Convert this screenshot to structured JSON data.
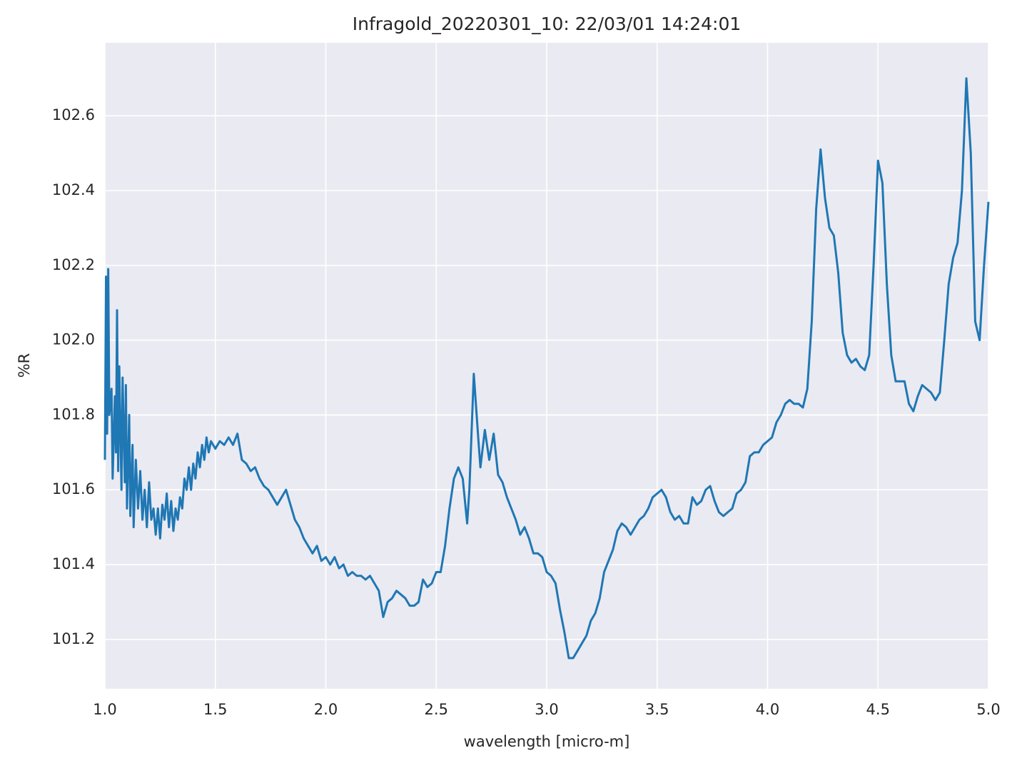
{
  "chart_data": {
    "type": "line",
    "title": "Infragold_20220301_10:  22/03/01 14:24:01",
    "xlabel": "wavelength [micro-m]",
    "ylabel": "%R",
    "xlim": [
      1.0,
      5.0
    ],
    "ylim": [
      101.068,
      102.795
    ],
    "xticks": [
      {
        "value": 1.0,
        "label": "1.0"
      },
      {
        "value": 1.5,
        "label": "1.5"
      },
      {
        "value": 2.0,
        "label": "2.0"
      },
      {
        "value": 2.5,
        "label": "2.5"
      },
      {
        "value": 3.0,
        "label": "3.0"
      },
      {
        "value": 3.5,
        "label": "3.5"
      },
      {
        "value": 4.0,
        "label": "4.0"
      },
      {
        "value": 4.5,
        "label": "4.5"
      },
      {
        "value": 5.0,
        "label": "5.0"
      }
    ],
    "yticks": [
      101.2,
      101.4,
      101.6,
      101.8,
      {
        "value": 102.0,
        "label": "102.0"
      },
      102.2,
      102.4,
      102.6
    ],
    "grid": true,
    "color": "#1f77b4",
    "background": "#eaeaf2",
    "x": [
      1.0,
      1.005,
      1.01,
      1.015,
      1.02,
      1.03,
      1.035,
      1.045,
      1.05,
      1.055,
      1.06,
      1.065,
      1.075,
      1.08,
      1.09,
      1.095,
      1.1,
      1.11,
      1.115,
      1.125,
      1.13,
      1.14,
      1.15,
      1.16,
      1.17,
      1.18,
      1.19,
      1.2,
      1.21,
      1.22,
      1.23,
      1.24,
      1.25,
      1.26,
      1.27,
      1.28,
      1.29,
      1.3,
      1.31,
      1.32,
      1.33,
      1.34,
      1.35,
      1.36,
      1.37,
      1.38,
      1.39,
      1.4,
      1.41,
      1.42,
      1.43,
      1.44,
      1.45,
      1.46,
      1.47,
      1.48,
      1.5,
      1.52,
      1.54,
      1.56,
      1.58,
      1.6,
      1.62,
      1.64,
      1.66,
      1.68,
      1.7,
      1.72,
      1.74,
      1.76,
      1.78,
      1.8,
      1.82,
      1.84,
      1.86,
      1.88,
      1.9,
      1.92,
      1.94,
      1.96,
      1.98,
      2.0,
      2.02,
      2.04,
      2.06,
      2.08,
      2.1,
      2.12,
      2.14,
      2.16,
      2.18,
      2.2,
      2.22,
      2.24,
      2.26,
      2.28,
      2.3,
      2.32,
      2.34,
      2.36,
      2.38,
      2.4,
      2.42,
      2.44,
      2.46,
      2.48,
      2.5,
      2.52,
      2.54,
      2.56,
      2.58,
      2.6,
      2.62,
      2.64,
      2.65,
      2.67,
      2.69,
      2.7,
      2.72,
      2.74,
      2.76,
      2.78,
      2.8,
      2.82,
      2.84,
      2.86,
      2.88,
      2.9,
      2.92,
      2.94,
      2.96,
      2.98,
      3.0,
      3.02,
      3.04,
      3.06,
      3.08,
      3.1,
      3.12,
      3.14,
      3.16,
      3.18,
      3.2,
      3.22,
      3.24,
      3.26,
      3.28,
      3.3,
      3.32,
      3.34,
      3.36,
      3.38,
      3.4,
      3.42,
      3.44,
      3.46,
      3.48,
      3.5,
      3.52,
      3.54,
      3.56,
      3.58,
      3.6,
      3.62,
      3.64,
      3.66,
      3.68,
      3.7,
      3.72,
      3.74,
      3.76,
      3.78,
      3.8,
      3.82,
      3.84,
      3.86,
      3.88,
      3.9,
      3.92,
      3.94,
      3.96,
      3.98,
      4.0,
      4.02,
      4.04,
      4.06,
      4.08,
      4.1,
      4.12,
      4.14,
      4.16,
      4.18,
      4.2,
      4.22,
      4.24,
      4.26,
      4.28,
      4.3,
      4.32,
      4.34,
      4.36,
      4.38,
      4.4,
      4.42,
      4.44,
      4.46,
      4.48,
      4.5,
      4.52,
      4.54,
      4.56,
      4.58,
      4.6,
      4.62,
      4.64,
      4.66,
      4.68,
      4.7,
      4.72,
      4.74,
      4.76,
      4.78,
      4.8,
      4.82,
      4.84,
      4.86,
      4.88,
      4.9,
      4.92,
      4.94,
      4.96,
      4.98,
      5.0
    ],
    "values": [
      101.68,
      102.17,
      101.75,
      102.19,
      101.8,
      101.87,
      101.63,
      101.85,
      101.7,
      102.08,
      101.65,
      101.93,
      101.6,
      101.9,
      101.62,
      101.88,
      101.55,
      101.8,
      101.53,
      101.72,
      101.5,
      101.68,
      101.55,
      101.65,
      101.52,
      101.6,
      101.5,
      101.62,
      101.52,
      101.55,
      101.48,
      101.55,
      101.47,
      101.56,
      101.52,
      101.59,
      101.5,
      101.57,
      101.49,
      101.55,
      101.52,
      101.58,
      101.55,
      101.63,
      101.6,
      101.66,
      101.6,
      101.67,
      101.63,
      101.7,
      101.66,
      101.72,
      101.68,
      101.74,
      101.7,
      101.73,
      101.71,
      101.73,
      101.72,
      101.74,
      101.72,
      101.75,
      101.68,
      101.67,
      101.65,
      101.66,
      101.63,
      101.61,
      101.6,
      101.58,
      101.56,
      101.58,
      101.6,
      101.56,
      101.52,
      101.5,
      101.47,
      101.45,
      101.43,
      101.45,
      101.41,
      101.42,
      101.4,
      101.42,
      101.39,
      101.4,
      101.37,
      101.38,
      101.37,
      101.37,
      101.36,
      101.37,
      101.35,
      101.33,
      101.26,
      101.3,
      101.31,
      101.33,
      101.32,
      101.31,
      101.29,
      101.29,
      101.3,
      101.36,
      101.34,
      101.35,
      101.38,
      101.38,
      101.45,
      101.55,
      101.63,
      101.66,
      101.63,
      101.51,
      101.6,
      101.91,
      101.74,
      101.66,
      101.76,
      101.68,
      101.75,
      101.64,
      101.62,
      101.58,
      101.55,
      101.52,
      101.48,
      101.5,
      101.47,
      101.43,
      101.43,
      101.42,
      101.38,
      101.37,
      101.35,
      101.28,
      101.22,
      101.15,
      101.15,
      101.17,
      101.19,
      101.21,
      101.25,
      101.27,
      101.31,
      101.38,
      101.41,
      101.44,
      101.49,
      101.51,
      101.5,
      101.48,
      101.5,
      101.52,
      101.53,
      101.55,
      101.58,
      101.59,
      101.6,
      101.58,
      101.54,
      101.52,
      101.53,
      101.51,
      101.51,
      101.58,
      101.56,
      101.57,
      101.6,
      101.61,
      101.57,
      101.54,
      101.53,
      101.54,
      101.55,
      101.59,
      101.6,
      101.62,
      101.69,
      101.7,
      101.7,
      101.72,
      101.73,
      101.74,
      101.78,
      101.8,
      101.83,
      101.84,
      101.83,
      101.83,
      101.82,
      101.87,
      102.05,
      102.35,
      102.51,
      102.38,
      102.3,
      102.28,
      102.18,
      102.02,
      101.96,
      101.94,
      101.95,
      101.93,
      101.92,
      101.96,
      102.2,
      102.48,
      102.42,
      102.15,
      101.96,
      101.89,
      101.89,
      101.89,
      101.83,
      101.81,
      101.85,
      101.88,
      101.87,
      101.86,
      101.84,
      101.86,
      102.0,
      102.15,
      102.22,
      102.26,
      102.4,
      102.7,
      102.5,
      102.05,
      102.0,
      102.2,
      102.37
    ]
  }
}
